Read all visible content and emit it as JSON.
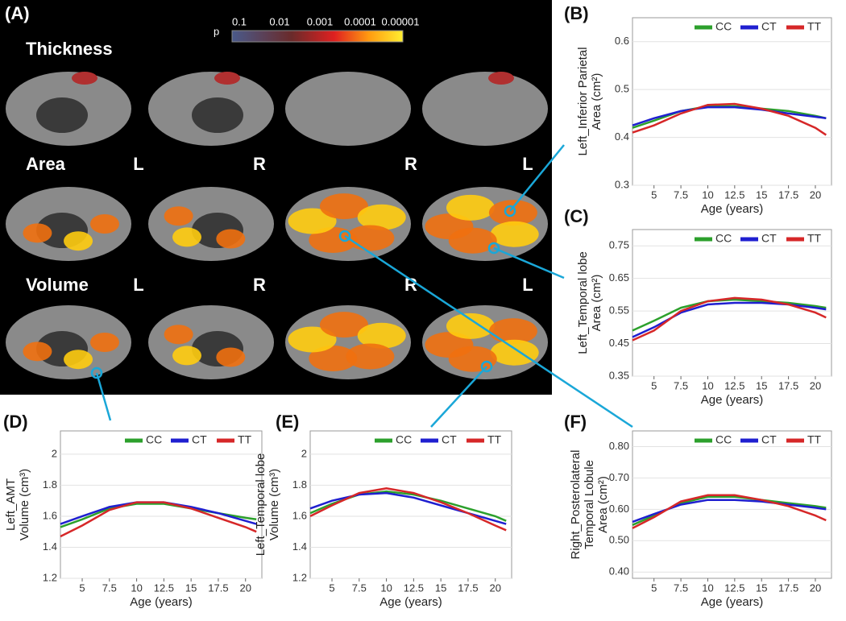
{
  "panel_a": {
    "label": "(A)",
    "colorbar_symbol": "p",
    "colorbar_labels": [
      "0.1",
      "0.01",
      "0.001",
      "0.0001",
      "0.00001"
    ],
    "rows": [
      "Thickness",
      "Area",
      "Volume"
    ],
    "hemis_area": [
      "L",
      "R",
      "R",
      "L"
    ],
    "hemis_volume": [
      "L",
      "R",
      "R",
      "L"
    ]
  },
  "chart_data": [
    {
      "type": "line",
      "panel": "(B)",
      "ylabel": [
        "Left_Inferior Parietal",
        "Area (cm²)"
      ],
      "xlabel": "Age (years)",
      "x": [
        3,
        5,
        7.5,
        10,
        12.5,
        15,
        17.5,
        20,
        21
      ],
      "xlim": [
        3,
        21.5
      ],
      "xticks": [
        5,
        7.5,
        10,
        12.5,
        15,
        17.5,
        20
      ],
      "ylim": [
        0.3,
        0.65
      ],
      "yticks": [
        0.3,
        0.4,
        0.5,
        0.6
      ],
      "grid": true,
      "legend": "top-right",
      "series": [
        {
          "name": "CC",
          "color": "#2ca02c",
          "values": [
            0.42,
            0.435,
            0.455,
            0.465,
            0.465,
            0.46,
            0.455,
            0.445,
            0.44
          ]
        },
        {
          "name": "CT",
          "color": "#1f1fd0",
          "values": [
            0.425,
            0.44,
            0.455,
            0.463,
            0.463,
            0.458,
            0.45,
            0.443,
            0.44
          ]
        },
        {
          "name": "TT",
          "color": "#d62728",
          "values": [
            0.41,
            0.425,
            0.45,
            0.468,
            0.47,
            0.46,
            0.445,
            0.42,
            0.405
          ]
        }
      ]
    },
    {
      "type": "line",
      "panel": "(C)",
      "ylabel": [
        "Left_Temporal lobe",
        "Area (cm²)"
      ],
      "xlabel": "Age (years)",
      "x": [
        3,
        5,
        7.5,
        10,
        12.5,
        15,
        17.5,
        20,
        21
      ],
      "xlim": [
        3,
        21.5
      ],
      "xticks": [
        5,
        7.5,
        10,
        12.5,
        15,
        17.5,
        20
      ],
      "ylim": [
        0.35,
        0.8
      ],
      "yticks": [
        0.35,
        0.45,
        0.55,
        0.65,
        0.75
      ],
      "grid": true,
      "legend": "top-right",
      "series": [
        {
          "name": "CC",
          "color": "#2ca02c",
          "values": [
            0.49,
            0.52,
            0.56,
            0.58,
            0.585,
            0.58,
            0.575,
            0.565,
            0.56
          ]
        },
        {
          "name": "CT",
          "color": "#1f1fd0",
          "values": [
            0.47,
            0.5,
            0.545,
            0.57,
            0.575,
            0.575,
            0.57,
            0.56,
            0.555
          ]
        },
        {
          "name": "TT",
          "color": "#d62728",
          "values": [
            0.46,
            0.49,
            0.55,
            0.58,
            0.59,
            0.585,
            0.57,
            0.545,
            0.53
          ]
        }
      ]
    },
    {
      "type": "line",
      "panel": "(D)",
      "ylabel": [
        "Left_AMT",
        "Volume (cm³)"
      ],
      "xlabel": "Age (years)",
      "x": [
        3,
        5,
        7.5,
        10,
        12.5,
        15,
        17.5,
        20,
        21
      ],
      "xlim": [
        3,
        21.5
      ],
      "xticks": [
        5,
        7.5,
        10,
        12.5,
        15,
        17.5,
        20
      ],
      "ylim": [
        1.2,
        2.15
      ],
      "yticks": [
        1.2,
        1.4,
        1.6,
        1.8,
        2
      ],
      "grid": true,
      "legend": "top-right",
      "series": [
        {
          "name": "CC",
          "color": "#2ca02c",
          "values": [
            1.53,
            1.58,
            1.65,
            1.68,
            1.68,
            1.65,
            1.62,
            1.59,
            1.58
          ]
        },
        {
          "name": "CT",
          "color": "#1f1fd0",
          "values": [
            1.55,
            1.6,
            1.66,
            1.69,
            1.69,
            1.66,
            1.62,
            1.57,
            1.55
          ]
        },
        {
          "name": "TT",
          "color": "#d62728",
          "values": [
            1.47,
            1.54,
            1.64,
            1.69,
            1.69,
            1.65,
            1.59,
            1.53,
            1.5
          ]
        }
      ]
    },
    {
      "type": "line",
      "panel": "(E)",
      "ylabel": [
        "Left_Temporal lobe",
        "Volume (cm³)"
      ],
      "xlabel": "Age (years)",
      "x": [
        3,
        5,
        7.5,
        10,
        12.5,
        15,
        17.5,
        20,
        21
      ],
      "xlim": [
        3,
        21.5
      ],
      "xticks": [
        5,
        7.5,
        10,
        12.5,
        15,
        17.5,
        20
      ],
      "ylim": [
        1.2,
        2.15
      ],
      "yticks": [
        1.2,
        1.4,
        1.6,
        1.8,
        2
      ],
      "grid": true,
      "legend": "top-right",
      "series": [
        {
          "name": "CC",
          "color": "#2ca02c",
          "values": [
            1.62,
            1.68,
            1.74,
            1.76,
            1.74,
            1.7,
            1.65,
            1.6,
            1.57
          ]
        },
        {
          "name": "CT",
          "color": "#1f1fd0",
          "values": [
            1.65,
            1.7,
            1.74,
            1.75,
            1.72,
            1.67,
            1.62,
            1.57,
            1.55
          ]
        },
        {
          "name": "TT",
          "color": "#d62728",
          "values": [
            1.6,
            1.67,
            1.75,
            1.78,
            1.75,
            1.69,
            1.62,
            1.54,
            1.51
          ]
        }
      ]
    },
    {
      "type": "line",
      "panel": "(F)",
      "ylabel": [
        "Right_Posterolateral",
        "Temporal Lobule",
        "Area (cm²)"
      ],
      "xlabel": "Age (years)",
      "x": [
        3,
        5,
        7.5,
        10,
        12.5,
        15,
        17.5,
        20,
        21
      ],
      "xlim": [
        3,
        21.5
      ],
      "xticks": [
        5,
        7.5,
        10,
        12.5,
        15,
        17.5,
        20
      ],
      "ylim": [
        0.38,
        0.85
      ],
      "yticks": [
        {
          "value": 0.4,
          "label": "0.40"
        },
        {
          "value": 0.5,
          "label": "0.50"
        },
        {
          "value": 0.6,
          "label": "0.60"
        },
        {
          "value": 0.7,
          "label": "0.70"
        },
        {
          "value": 0.8,
          "label": "0.80"
        }
      ],
      "grid": true,
      "legend": "top-right",
      "series": [
        {
          "name": "CC",
          "color": "#2ca02c",
          "values": [
            0.55,
            0.58,
            0.62,
            0.64,
            0.64,
            0.63,
            0.62,
            0.61,
            0.605
          ]
        },
        {
          "name": "CT",
          "color": "#1f1fd0",
          "values": [
            0.56,
            0.585,
            0.615,
            0.63,
            0.63,
            0.625,
            0.615,
            0.605,
            0.6
          ]
        },
        {
          "name": "TT",
          "color": "#d62728",
          "values": [
            0.54,
            0.575,
            0.625,
            0.645,
            0.645,
            0.63,
            0.61,
            0.58,
            0.565
          ]
        }
      ]
    }
  ]
}
